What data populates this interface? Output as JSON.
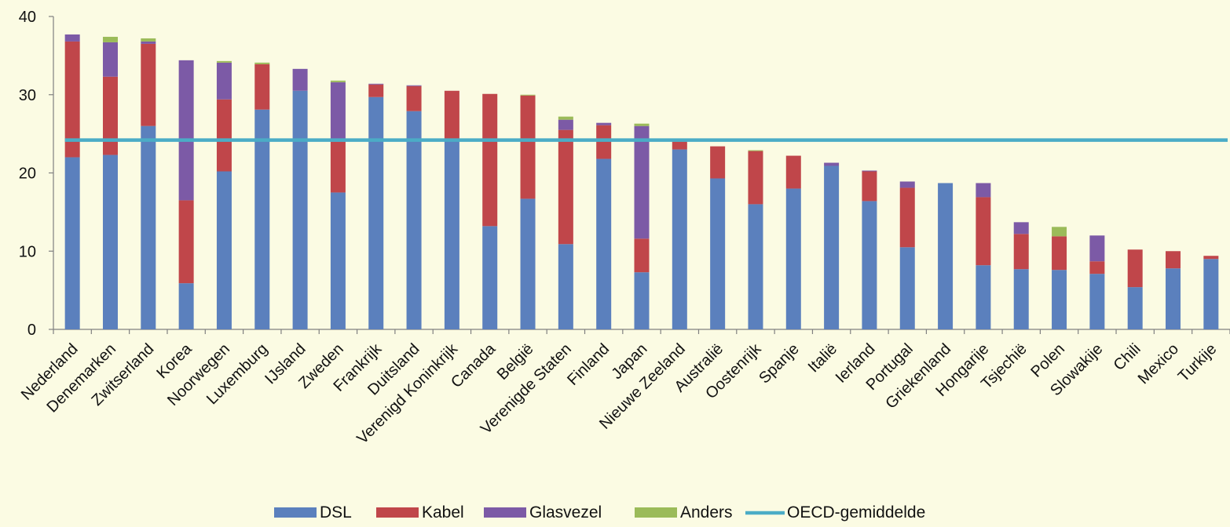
{
  "chart_data": {
    "type": "bar",
    "stacked": true,
    "categories": [
      "Nederland",
      "Denemarken",
      "Zwitserland",
      "Korea",
      "Noorwegen",
      "Luxemburg",
      "IJsland",
      "Zweden",
      "Frankrijk",
      "Duitsland",
      "Verenigd Koninkrijk",
      "Canada",
      "België",
      "Verenigde Staten",
      "Finland",
      "Japan",
      "Nieuwe Zeeland",
      "Australië",
      "Oostenrijk",
      "Spanje",
      "Italië",
      "Ierland",
      "Portugal",
      "Griekenland",
      "Hongarije",
      "Tsjechië",
      "Polen",
      "Slowakije",
      "Chili",
      "Mexico",
      "Turkije"
    ],
    "series": [
      {
        "name": "DSL",
        "color": "#5b80bd",
        "values": [
          22.0,
          22.3,
          26.0,
          5.9,
          20.2,
          28.1,
          30.5,
          17.5,
          29.7,
          27.9,
          24.4,
          13.2,
          16.7,
          10.9,
          21.8,
          7.3,
          23.0,
          19.3,
          16.0,
          18.0,
          20.9,
          16.4,
          10.5,
          18.7,
          8.2,
          7.7,
          7.6,
          7.1,
          5.4,
          7.8,
          9.0
        ]
      },
      {
        "name": "Kabel",
        "color": "#c0464a",
        "values": [
          14.8,
          10.0,
          10.5,
          10.6,
          9.2,
          5.8,
          0.0,
          6.5,
          1.6,
          3.2,
          6.1,
          16.9,
          13.2,
          14.6,
          4.3,
          4.3,
          1.0,
          4.1,
          6.8,
          4.2,
          0.0,
          3.8,
          7.6,
          0.0,
          8.7,
          4.5,
          4.3,
          1.6,
          4.8,
          2.2,
          0.4
        ]
      },
      {
        "name": "Glasvezel",
        "color": "#7c5aa6",
        "values": [
          0.9,
          4.4,
          0.3,
          17.9,
          4.7,
          0.0,
          2.8,
          7.6,
          0.1,
          0.1,
          0.0,
          0.0,
          0.0,
          1.3,
          0.3,
          14.4,
          0.0,
          0.0,
          0.0,
          0.0,
          0.4,
          0.1,
          0.8,
          0.0,
          1.8,
          1.5,
          0.0,
          3.3,
          0.0,
          0.0,
          0.0
        ]
      },
      {
        "name": "Anders",
        "color": "#9bbb59",
        "values": [
          0.0,
          0.7,
          0.4,
          0.0,
          0.2,
          0.2,
          0.0,
          0.2,
          0.0,
          0.0,
          0.0,
          0.0,
          0.1,
          0.4,
          0.0,
          0.3,
          0.0,
          0.0,
          0.1,
          0.0,
          0.0,
          0.0,
          0.0,
          0.0,
          0.0,
          0.0,
          1.2,
          0.0,
          0.0,
          0.0,
          0.0
        ]
      }
    ],
    "reference_line": {
      "name": "OECD-gemiddelde",
      "value": 24.2,
      "color": "#4bacc6"
    },
    "ylim": [
      0,
      40
    ],
    "yticks": [
      0,
      10,
      20,
      30,
      40
    ],
    "grid": false,
    "legend_position": "bottom",
    "title": "",
    "xlabel": "",
    "ylabel": ""
  }
}
